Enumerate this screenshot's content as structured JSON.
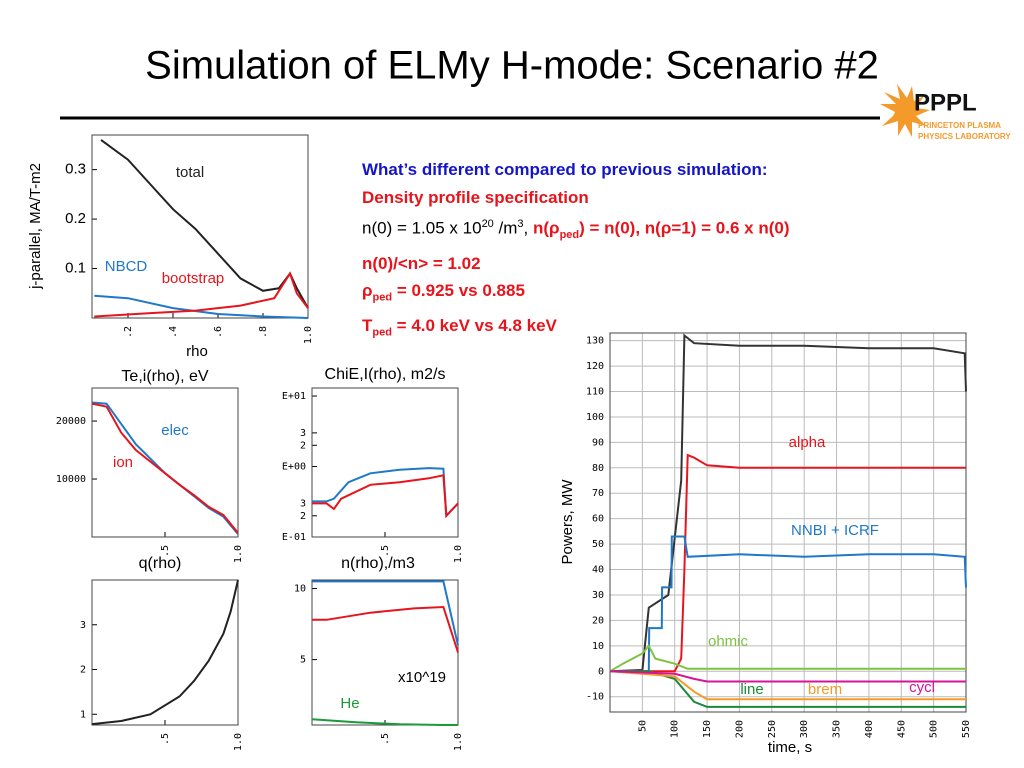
{
  "title": "Simulation of ELMy H-mode: Scenario #2",
  "logo": {
    "name": "PPPL",
    "line1": "PRINCETON PLASMA",
    "line2": "PHYSICS LABORATORY"
  },
  "notes": [
    "What’s different compared to previous simulation:",
    "Density profile specification",
    [
      "n(0) = 1.05 x 10",
      "20",
      " /m",
      "3",
      ", ",
      "n(",
      "ρ",
      "ped",
      ") = n(0), n(",
      "ρ",
      "=1) = 0.6 x n(0)"
    ],
    "n(0)/<n> = 1.02",
    [
      "ρ",
      "ped",
      " = 0.925 vs 0.885"
    ],
    [
      "T",
      "ped",
      " = 4.0 keV vs 4.8 keV"
    ]
  ],
  "chart_data": [
    {
      "type": "line",
      "xlabel": "rho",
      "ylabel": "j-parallel, MA/T-m2",
      "xlim": [
        0.04,
        1
      ],
      "ylim": [
        0,
        0.37
      ],
      "xticks": [
        {
          "value": 0.2,
          "label": ".2"
        },
        {
          "value": 0.4,
          "label": ".4"
        },
        {
          "value": 0.6,
          "label": ".6"
        },
        {
          "value": 0.8,
          "label": ".8"
        },
        {
          "value": 1,
          "label": "1.0"
        }
      ],
      "yticks": [
        0.1,
        0.2,
        0.3
      ],
      "series": [
        {
          "name": "total",
          "color": "#222222",
          "x": [
            0.08,
            0.2,
            0.3,
            0.4,
            0.5,
            0.6,
            0.7,
            0.8,
            0.87,
            0.92,
            0.95,
            1.0
          ],
          "values": [
            0.36,
            0.32,
            0.27,
            0.22,
            0.18,
            0.13,
            0.08,
            0.055,
            0.06,
            0.09,
            0.06,
            0.02
          ]
        },
        {
          "name": "NBCD",
          "color": "#1f78c8",
          "x": [
            0.05,
            0.2,
            0.4,
            0.6,
            0.8,
            1.0
          ],
          "values": [
            0.045,
            0.04,
            0.02,
            0.008,
            0.003,
            0
          ]
        },
        {
          "name": "bootstrap",
          "color": "#e8141c",
          "x": [
            0.05,
            0.3,
            0.5,
            0.7,
            0.85,
            0.92,
            0.95,
            1.0
          ],
          "values": [
            0.003,
            0.01,
            0.015,
            0.025,
            0.04,
            0.09,
            0.05,
            0.02
          ]
        }
      ]
    },
    {
      "type": "line",
      "title": "Te,i(rho), eV",
      "xlim": [
        0,
        1
      ],
      "ylim": [
        0,
        25700
      ],
      "xticks": [
        {
          "value": 0.5,
          "label": ".5"
        },
        {
          "value": 1,
          "label": "1.0"
        }
      ],
      "yticks": [
        10000,
        20000
      ],
      "series": [
        {
          "name": "elec",
          "color": "#1f78c8",
          "x": [
            0,
            0.1,
            0.2,
            0.3,
            0.4,
            0.5,
            0.6,
            0.7,
            0.8,
            0.9,
            1.0
          ],
          "values": [
            23200,
            23000,
            19500,
            16000,
            13500,
            11000,
            9000,
            7000,
            5000,
            3500,
            500
          ]
        },
        {
          "name": "ion",
          "color": "#e8141c",
          "x": [
            0,
            0.1,
            0.2,
            0.3,
            0.4,
            0.5,
            0.6,
            0.7,
            0.8,
            0.9,
            1.0
          ],
          "values": [
            23000,
            22500,
            18000,
            15000,
            13000,
            11000,
            9000,
            7200,
            5200,
            3800,
            700
          ]
        }
      ]
    },
    {
      "type": "line",
      "title": "ChiE,I(rho), m2/s",
      "log_y": true,
      "xlim": [
        0,
        1
      ],
      "ylim": [
        0.1,
        13
      ],
      "xticks": [
        {
          "value": 0.5,
          "label": ".5"
        },
        {
          "value": 1,
          "label": "1.0"
        }
      ],
      "yticks": [
        {
          "value": 0.1,
          "label": "E-01"
        },
        {
          "value": 0.2,
          "label": "2"
        },
        {
          "value": 0.3,
          "label": "3"
        },
        {
          "value": 1,
          "label": "E+00"
        },
        2,
        3,
        {
          "value": 10,
          "label": "E+01"
        }
      ],
      "series": [
        {
          "color": "#1f78c8",
          "x": [
            0,
            0.1,
            0.15,
            0.25,
            0.4,
            0.6,
            0.8,
            0.9,
            0.92,
            1.0
          ],
          "values": [
            0.32,
            0.32,
            0.35,
            0.6,
            0.8,
            0.9,
            0.95,
            0.93,
            0.2,
            0.3
          ]
        },
        {
          "color": "#e8141c",
          "x": [
            0,
            0.1,
            0.15,
            0.2,
            0.4,
            0.6,
            0.8,
            0.9,
            0.92,
            1.0
          ],
          "values": [
            0.3,
            0.3,
            0.25,
            0.35,
            0.55,
            0.6,
            0.68,
            0.75,
            0.2,
            0.3
          ]
        }
      ]
    },
    {
      "type": "line",
      "title": "q(rho)",
      "xlim": [
        0,
        1
      ],
      "ylim": [
        0.76,
        4
      ],
      "xticks": [
        {
          "value": 0.5,
          "label": ".5"
        },
        {
          "value": 1,
          "label": "1.0"
        }
      ],
      "yticks": [
        1,
        2,
        3
      ],
      "series": [
        {
          "color": "#222222",
          "x": [
            0,
            0.2,
            0.4,
            0.6,
            0.7,
            0.8,
            0.9,
            0.95,
            1.0
          ],
          "values": [
            0.78,
            0.85,
            1.0,
            1.4,
            1.75,
            2.2,
            2.8,
            3.3,
            4.0
          ]
        }
      ]
    },
    {
      "type": "line",
      "title": "n(rho),/m3",
      "annotations": [
        "x10^19"
      ],
      "xlim": [
        0,
        1
      ],
      "ylim": [
        0.4,
        10.6
      ],
      "xticks": [
        {
          "value": 0.5,
          "label": ".5"
        },
        {
          "value": 1,
          "label": "1.0"
        }
      ],
      "yticks": [
        5,
        10
      ],
      "series": [
        {
          "color": "#1f78c8",
          "x": [
            0,
            0.9,
            1.0
          ],
          "values": [
            10.5,
            10.5,
            6
          ]
        },
        {
          "color": "#e8141c",
          "x": [
            0,
            0.1,
            0.4,
            0.7,
            0.9,
            1.0
          ],
          "values": [
            7.8,
            7.8,
            8.3,
            8.6,
            8.7,
            5.5
          ]
        },
        {
          "name": "He",
          "color": "#1a9a3a",
          "x": [
            0,
            0.3,
            0.6,
            0.9,
            1.0
          ],
          "values": [
            0.8,
            0.6,
            0.45,
            0.4,
            0.4
          ]
        }
      ]
    },
    {
      "type": "line",
      "xlabel": "time, s",
      "ylabel": "Powers, MW",
      "grid": true,
      "xlim": [
        0,
        550
      ],
      "ylim": [
        -16,
        133
      ],
      "xticks": [
        50,
        100,
        150,
        200,
        250,
        300,
        350,
        400,
        450,
        500,
        550
      ],
      "yticks": [
        -10,
        0,
        10,
        20,
        30,
        40,
        50,
        60,
        70,
        80,
        90,
        100,
        110,
        120,
        130
      ],
      "series": [
        {
          "color": "#333333",
          "x": [
            0,
            50,
            60,
            90,
            110,
            115,
            130,
            200,
            300,
            400,
            500,
            548,
            550
          ],
          "values": [
            0,
            0.5,
            25,
            30,
            75,
            132,
            129,
            128,
            128,
            127,
            127,
            125,
            110
          ]
        },
        {
          "name": "alpha",
          "color": "#e8141c",
          "x": [
            0,
            100,
            110,
            115,
            120,
            130,
            150,
            200,
            300,
            400,
            550
          ],
          "values": [
            0,
            0,
            5,
            40,
            85,
            84,
            81,
            80,
            80,
            80,
            80
          ]
        },
        {
          "name": "NNBI + ICRF",
          "color": "#1f78c8",
          "x": [
            0,
            60,
            60.5,
            80,
            80.5,
            95,
            95.5,
            115,
            120,
            200,
            300,
            400,
            500,
            548,
            550
          ],
          "values": [
            0,
            0,
            17,
            17,
            33,
            33,
            53,
            53,
            45,
            46,
            45,
            46,
            46,
            45,
            33
          ]
        },
        {
          "name": "ohmic",
          "color": "#7dc242",
          "x": [
            0,
            20,
            50,
            60,
            70,
            100,
            120,
            200,
            550
          ],
          "values": [
            0,
            3,
            7,
            10,
            5,
            3,
            1,
            1,
            1
          ]
        },
        {
          "name": "line",
          "color": "#1a8a3a",
          "x": [
            0,
            60,
            100,
            130,
            150,
            300,
            550
          ],
          "values": [
            0,
            0,
            -3,
            -12,
            -14,
            -14,
            -14
          ]
        },
        {
          "name": "brem",
          "color": "#f39a2b",
          "x": [
            0,
            100,
            130,
            150,
            550
          ],
          "values": [
            0,
            -2,
            -8,
            -11,
            -11
          ]
        },
        {
          "name": "cycl",
          "color": "#d4149a",
          "x": [
            0,
            100,
            130,
            150,
            550
          ],
          "values": [
            0,
            -1,
            -3,
            -4,
            -4
          ]
        }
      ]
    }
  ]
}
